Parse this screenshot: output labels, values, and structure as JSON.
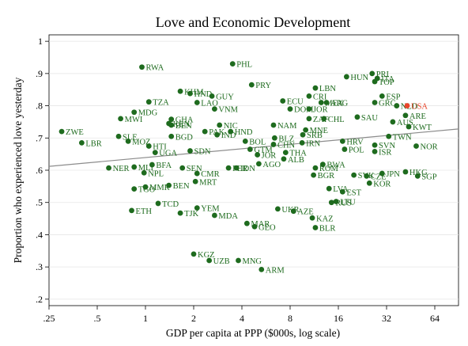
{
  "chart_data": {
    "type": "scatter",
    "title": "Love and Economic Development",
    "xlabel": "GDP per capita at PPP ($000s, log scale)",
    "ylabel": "Proportion who experienced love yesterday",
    "x_scale": "log2",
    "xlim": [
      0.25,
      90
    ],
    "ylim": [
      0.18,
      1.02
    ],
    "x_ticks": [
      {
        "value": 0.25,
        "label": ".25"
      },
      {
        "value": 0.5,
        "label": ".5"
      },
      {
        "value": 1,
        "label": "1"
      },
      {
        "value": 2,
        "label": "2"
      },
      {
        "value": 4,
        "label": "4"
      },
      {
        "value": 8,
        "label": "8"
      },
      {
        "value": 16,
        "label": "16"
      },
      {
        "value": 32,
        "label": "32"
      },
      {
        "value": 64,
        "label": "64"
      }
    ],
    "y_ticks": [
      {
        "value": 0.2,
        "label": ".2"
      },
      {
        "value": 0.3,
        "label": ".3"
      },
      {
        "value": 0.4,
        "label": ".4"
      },
      {
        "value": 0.5,
        "label": ".5"
      },
      {
        "value": 0.6,
        "label": ".6"
      },
      {
        "value": 0.7,
        "label": ".7"
      },
      {
        "value": 0.8,
        "label": ".8"
      },
      {
        "value": 0.9,
        "label": ".9"
      },
      {
        "value": 1,
        "label": "1"
      }
    ],
    "grid": "horizontal",
    "colors": {
      "points": "#1e6b1e",
      "highlight": "#e8452a",
      "fit_line": "#8c8c8c",
      "frame": "#000000"
    },
    "fit_line": {
      "x": [
        0.25,
        90
      ],
      "y": [
        0.612,
        0.728
      ]
    },
    "points": [
      {
        "label": "RWA",
        "x": 0.95,
        "y": 0.92
      },
      {
        "label": "PHL",
        "x": 3.5,
        "y": 0.93
      },
      {
        "label": "PRY",
        "x": 4.6,
        "y": 0.865
      },
      {
        "label": "HUN",
        "x": 18,
        "y": 0.89
      },
      {
        "label": "PRI",
        "x": 26,
        "y": 0.9
      },
      {
        "label": "ITA",
        "x": 28,
        "y": 0.885
      },
      {
        "label": "TOP",
        "x": 27,
        "y": 0.875
      },
      {
        "label": "LBN",
        "x": 11.5,
        "y": 0.855
      },
      {
        "label": "CRI",
        "x": 10.5,
        "y": 0.83
      },
      {
        "label": "ESP",
        "x": 30,
        "y": 0.83
      },
      {
        "label": "KHM",
        "x": 1.65,
        "y": 0.845
      },
      {
        "label": "HND",
        "x": 1.9,
        "y": 0.838
      },
      {
        "label": "GUY",
        "x": 2.6,
        "y": 0.83
      },
      {
        "label": "TZA",
        "x": 1.05,
        "y": 0.812
      },
      {
        "label": "LAO",
        "x": 2.1,
        "y": 0.81
      },
      {
        "label": "VNM",
        "x": 2.7,
        "y": 0.79
      },
      {
        "label": "ECU",
        "x": 7.2,
        "y": 0.815
      },
      {
        "label": "ARG",
        "x": 13.5,
        "y": 0.81
      },
      {
        "label": "MEX",
        "x": 12.5,
        "y": 0.81
      },
      {
        "label": "DOM",
        "x": 8.0,
        "y": 0.79
      },
      {
        "label": "JOR",
        "x": 10.5,
        "y": 0.79
      },
      {
        "label": "GRC",
        "x": 27,
        "y": 0.81
      },
      {
        "label": "NLD",
        "x": 37,
        "y": 0.8
      },
      {
        "label": "USA",
        "x": 43,
        "y": 0.8,
        "highlight": true
      },
      {
        "label": "ARE",
        "x": 42,
        "y": 0.77
      },
      {
        "label": "SAU",
        "x": 21,
        "y": 0.765
      },
      {
        "label": "CHL",
        "x": 13,
        "y": 0.76
      },
      {
        "label": "ZAF",
        "x": 10.5,
        "y": 0.76
      },
      {
        "label": "AUS",
        "x": 35,
        "y": 0.75
      },
      {
        "label": "KWT",
        "x": 44,
        "y": 0.735
      },
      {
        "label": "MDG",
        "x": 0.85,
        "y": 0.78
      },
      {
        "label": "MWI",
        "x": 0.7,
        "y": 0.76
      },
      {
        "label": "GHA",
        "x": 1.45,
        "y": 0.758
      },
      {
        "label": "KEN",
        "x": 1.4,
        "y": 0.745
      },
      {
        "label": "BEN",
        "x": 1.45,
        "y": 0.74
      },
      {
        "label": "PAK",
        "x": 2.35,
        "y": 0.72
      },
      {
        "label": "NIC",
        "x": 2.9,
        "y": 0.74
      },
      {
        "label": "IND",
        "x": 2.8,
        "y": 0.71
      },
      {
        "label": "HND2",
        "x": 3.4,
        "y": 0.72
      },
      {
        "label": "NAM",
        "x": 6.3,
        "y": 0.74
      },
      {
        "label": "MNE",
        "x": 10,
        "y": 0.725
      },
      {
        "label": "SRB",
        "x": 9.6,
        "y": 0.71
      },
      {
        "label": "BGD",
        "x": 1.45,
        "y": 0.705
      },
      {
        "label": "ZWE",
        "x": 0.3,
        "y": 0.72
      },
      {
        "label": "SLE",
        "x": 0.68,
        "y": 0.705
      },
      {
        "label": "LBR",
        "x": 0.4,
        "y": 0.685
      },
      {
        "label": "MOZ",
        "x": 0.78,
        "y": 0.69
      },
      {
        "label": "HTI",
        "x": 1.05,
        "y": 0.675
      },
      {
        "label": "UGA",
        "x": 1.15,
        "y": 0.655
      },
      {
        "label": "SDN",
        "x": 1.9,
        "y": 0.66
      },
      {
        "label": "BOL",
        "x": 4.2,
        "y": 0.69
      },
      {
        "label": "CHN",
        "x": 6.3,
        "y": 0.68
      },
      {
        "label": "IRN",
        "x": 9.5,
        "y": 0.685
      },
      {
        "label": "BLZ",
        "x": 6.4,
        "y": 0.7
      },
      {
        "label": "GTM",
        "x": 4.5,
        "y": 0.665
      },
      {
        "label": "JOR2",
        "x": 5.0,
        "y": 0.648
      },
      {
        "label": "THA",
        "x": 7.5,
        "y": 0.655
      },
      {
        "label": "ALB",
        "x": 7.3,
        "y": 0.635
      },
      {
        "label": "HRV",
        "x": 17,
        "y": 0.69
      },
      {
        "label": "POL",
        "x": 17.5,
        "y": 0.665
      },
      {
        "label": "SVN",
        "x": 27,
        "y": 0.678
      },
      {
        "label": "ISR",
        "x": 27,
        "y": 0.658
      },
      {
        "label": "TWN",
        "x": 33,
        "y": 0.705
      },
      {
        "label": "NOR",
        "x": 49,
        "y": 0.675
      },
      {
        "label": "NER",
        "x": 0.59,
        "y": 0.607
      },
      {
        "label": "MLI",
        "x": 0.85,
        "y": 0.61
      },
      {
        "label": "BFA",
        "x": 1.1,
        "y": 0.617
      },
      {
        "label": "NPL",
        "x": 0.98,
        "y": 0.592
      },
      {
        "label": "SEN",
        "x": 1.7,
        "y": 0.607
      },
      {
        "label": "CMR",
        "x": 2.1,
        "y": 0.59
      },
      {
        "label": "PER",
        "x": 3.3,
        "y": 0.607
      },
      {
        "label": "IDN",
        "x": 3.7,
        "y": 0.607
      },
      {
        "label": "AGO",
        "x": 5.1,
        "y": 0.62
      },
      {
        "label": "ROM",
        "x": 11.5,
        "y": 0.607
      },
      {
        "label": "BWA",
        "x": 12.8,
        "y": 0.618
      },
      {
        "label": "BGR",
        "x": 11.2,
        "y": 0.585
      },
      {
        "label": "SVK",
        "x": 20,
        "y": 0.585
      },
      {
        "label": "CZE",
        "x": 24,
        "y": 0.582
      },
      {
        "label": "JPN",
        "x": 30,
        "y": 0.59
      },
      {
        "label": "HKG",
        "x": 42,
        "y": 0.595
      },
      {
        "label": "SGP",
        "x": 50,
        "y": 0.582
      },
      {
        "label": "KOR",
        "x": 25,
        "y": 0.56
      },
      {
        "label": "TGO",
        "x": 0.85,
        "y": 0.542
      },
      {
        "label": "BEN2",
        "x": 1.4,
        "y": 0.553
      },
      {
        "label": "MMR",
        "x": 1.0,
        "y": 0.548
      },
      {
        "label": "MRT",
        "x": 2.05,
        "y": 0.565
      },
      {
        "label": "LVA",
        "x": 14,
        "y": 0.543
      },
      {
        "label": "EST",
        "x": 17,
        "y": 0.533
      },
      {
        "label": "LTU",
        "x": 15.5,
        "y": 0.503
      },
      {
        "label": "RUS",
        "x": 14.5,
        "y": 0.5
      },
      {
        "label": "ETH",
        "x": 0.82,
        "y": 0.475
      },
      {
        "label": "TCD",
        "x": 1.2,
        "y": 0.497
      },
      {
        "label": "TJK",
        "x": 1.65,
        "y": 0.467
      },
      {
        "label": "YEM",
        "x": 2.1,
        "y": 0.483
      },
      {
        "label": "MDA",
        "x": 2.7,
        "y": 0.46
      },
      {
        "label": "UKR",
        "x": 6.7,
        "y": 0.48
      },
      {
        "label": "AZE",
        "x": 8.4,
        "y": 0.473
      },
      {
        "label": "KAZ",
        "x": 11,
        "y": 0.452
      },
      {
        "label": "MAR",
        "x": 4.3,
        "y": 0.435
      },
      {
        "label": "GEO",
        "x": 4.8,
        "y": 0.425
      },
      {
        "label": "BLR",
        "x": 11.5,
        "y": 0.422
      },
      {
        "label": "KGZ",
        "x": 2.0,
        "y": 0.34
      },
      {
        "label": "UZB",
        "x": 2.5,
        "y": 0.32
      },
      {
        "label": "MNG",
        "x": 3.8,
        "y": 0.32
      },
      {
        "label": "ARM",
        "x": 5.3,
        "y": 0.292
      }
    ]
  }
}
